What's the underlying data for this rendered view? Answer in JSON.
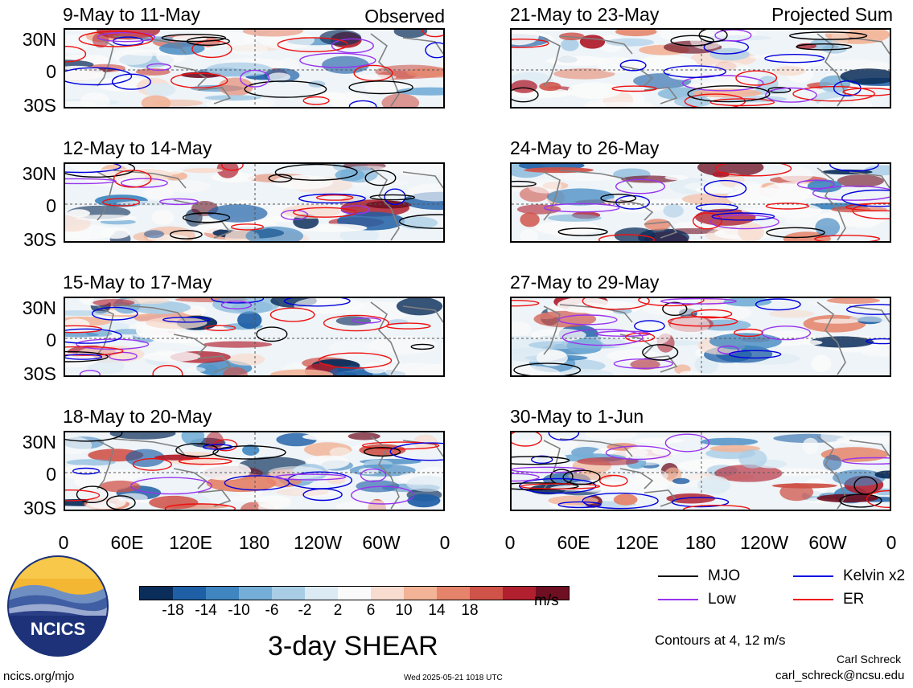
{
  "panels_left": [
    {
      "title": "9-May to 11-May",
      "note": "Observed"
    },
    {
      "title": "12-May to 14-May",
      "note": ""
    },
    {
      "title": "15-May to 17-May",
      "note": ""
    },
    {
      "title": "18-May to 20-May",
      "note": ""
    }
  ],
  "panels_right": [
    {
      "title": "21-May to 23-May",
      "note": "Projected Sum"
    },
    {
      "title": "24-May to 26-May",
      "note": ""
    },
    {
      "title": "27-May to 29-May",
      "note": ""
    },
    {
      "title": "30-May to 1-Jun",
      "note": ""
    }
  ],
  "lat_labels": [
    "30N",
    "0",
    "30S"
  ],
  "lon_labels": [
    "0",
    "60E",
    "120E",
    "180",
    "120W",
    "60W",
    "0"
  ],
  "colorbar": {
    "colors": [
      "#0b2d5a",
      "#1f5fa6",
      "#3f86c0",
      "#75aed6",
      "#aacde6",
      "#dceaf3",
      "#fafafa",
      "#f7dccf",
      "#f2b396",
      "#e5846a",
      "#cf5349",
      "#b0202f",
      "#6e0f22"
    ],
    "ticks": [
      "-18",
      "-14",
      "-10",
      "-6",
      "-2",
      "2",
      "6",
      "10",
      "14",
      "18"
    ],
    "units": "m/s"
  },
  "title": "3-day SHEAR",
  "legend": [
    {
      "label": "MJO",
      "color": "#000000"
    },
    {
      "label": "Kelvin x2",
      "color": "#0000dd"
    },
    {
      "label": "Low",
      "color": "#9933ee"
    },
    {
      "label": "ER",
      "color": "#ee1111"
    }
  ],
  "contours_note": "Contours at 4, 12 m/s",
  "author": "Carl Schreck",
  "email": "carl_schreck@ncsu.edu",
  "site": "ncics.org/mjo",
  "timestamp": "Wed 2025-05-21 1018 UTC",
  "logo_text": "NCICS"
}
